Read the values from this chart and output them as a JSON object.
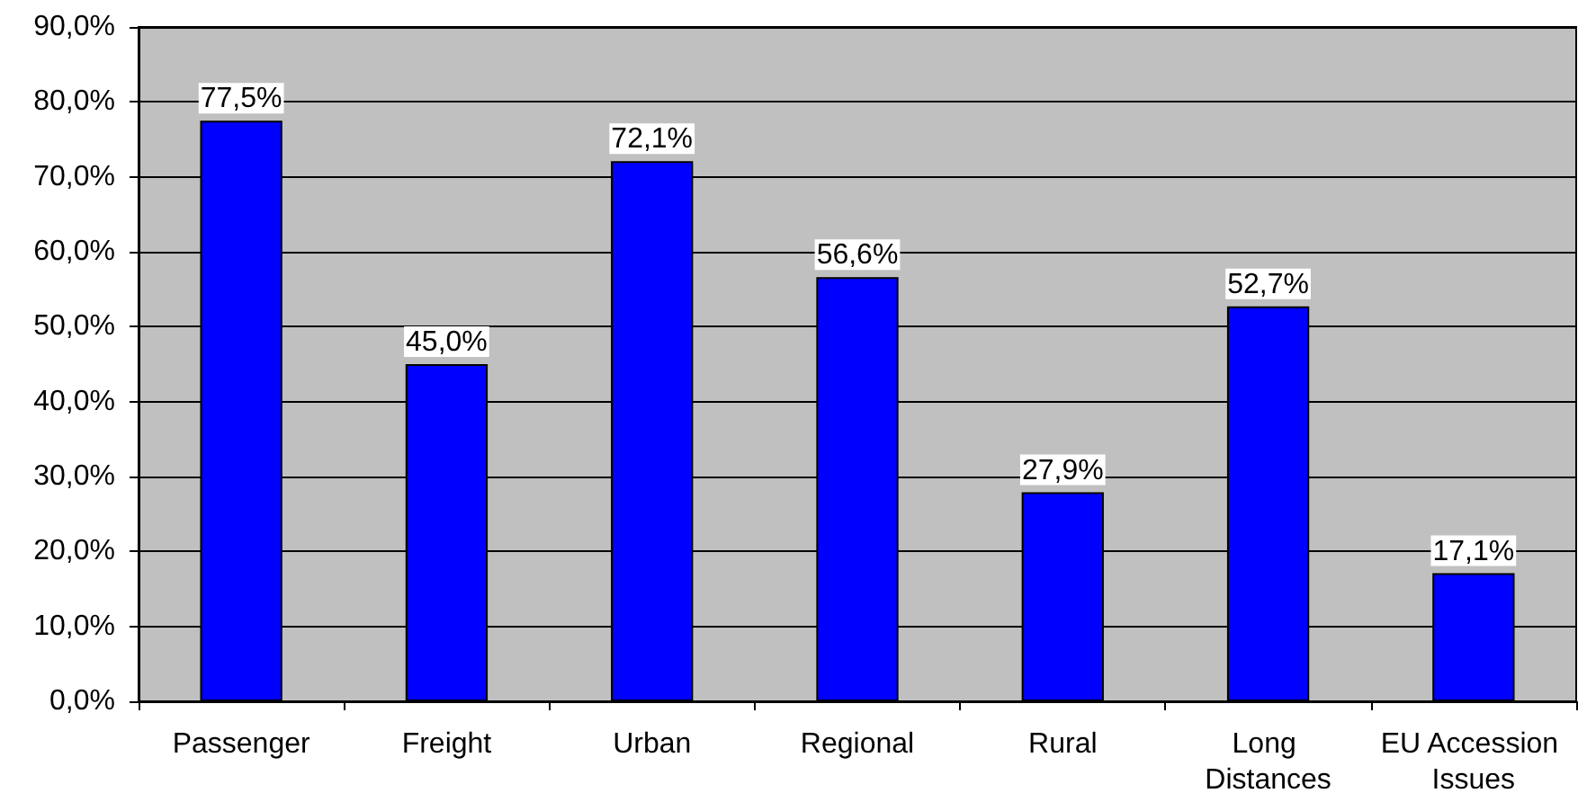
{
  "chart_data": {
    "type": "bar",
    "categories": [
      "Passenger",
      "Freight",
      "Urban",
      "Regional",
      "Rural",
      "Long Distances",
      "EU Accession Issues"
    ],
    "values": [
      77.5,
      45.0,
      72.1,
      56.6,
      27.9,
      52.7,
      17.1
    ],
    "value_labels": [
      "77,5%",
      "45,0%",
      "72,1%",
      "56,6%",
      "27,9%",
      "52,7%",
      "17,1%"
    ],
    "color": "#0000ff",
    "ylim": [
      0,
      90
    ],
    "yticks": [
      {
        "value": 0,
        "label": "0,0%"
      },
      {
        "value": 10,
        "label": "10,0%"
      },
      {
        "value": 20,
        "label": "20,0%"
      },
      {
        "value": 30,
        "label": "30,0%"
      },
      {
        "value": 40,
        "label": "40,0%"
      },
      {
        "value": 50,
        "label": "50,0%"
      },
      {
        "value": 60,
        "label": "60,0%"
      },
      {
        "value": 70,
        "label": "70,0%"
      },
      {
        "value": 80,
        "label": "80,0%"
      },
      {
        "value": 90,
        "label": "90,0%"
      }
    ],
    "grid": "y"
  }
}
